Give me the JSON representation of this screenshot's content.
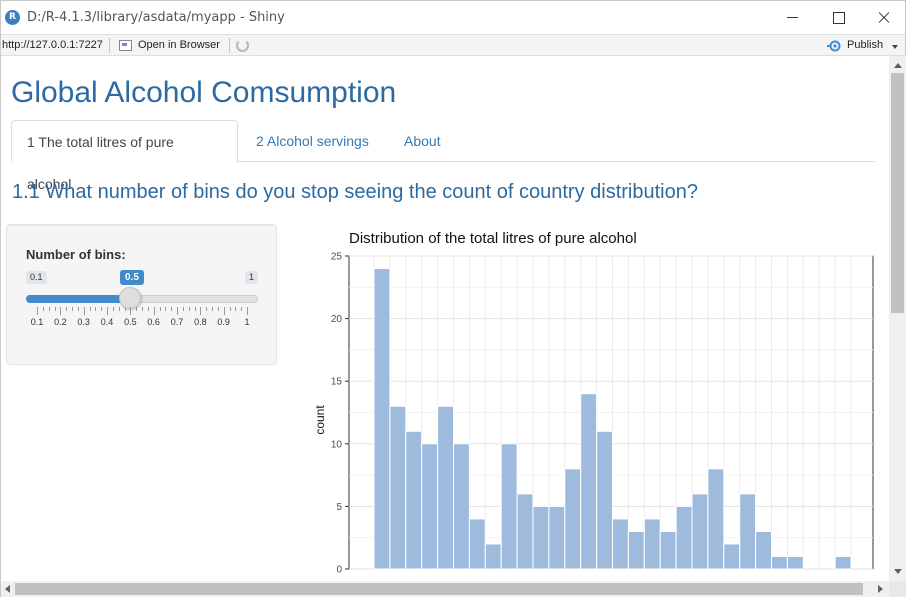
{
  "window": {
    "title": "D:/R-4.1.3/library/asdata/myapp - Shiny",
    "icon_letter": "R",
    "icon_color": "#3f7dc0"
  },
  "toolbar": {
    "url": "http://127.0.0.1:7227",
    "open_in_browser": "Open in Browser",
    "publish": "Publish"
  },
  "app": {
    "title": "Global Alcohol Comsumption",
    "accent": "#2c6aa3"
  },
  "tabs": [
    {
      "label": "1 The total litres of pure alcohol",
      "active": true
    },
    {
      "label": "2 Alcohol servings",
      "active": false
    },
    {
      "label": "About",
      "active": false
    }
  ],
  "question": "1.1 What number of bins do you stop seeing the count of country distribution?",
  "slider": {
    "label": "Number of bins:",
    "min": "0.1",
    "max": "1",
    "value": "0.5",
    "value_fraction": 0.444,
    "ticks": [
      "0.1",
      "0.2",
      "0.3",
      "0.4",
      "0.5",
      "0.6",
      "0.7",
      "0.8",
      "0.9",
      "1"
    ],
    "bar_color": "#428bca"
  },
  "chart_data": {
    "type": "bar",
    "title": "Distribution of the total litres of pure alcohol",
    "ylabel": "count",
    "xlabel": "",
    "ylim": [
      0,
      25
    ],
    "yticks": [
      "0",
      "5",
      "10",
      "15",
      "20",
      "25"
    ],
    "values": [
      24,
      13,
      11,
      10,
      13,
      10,
      4,
      2,
      10,
      6,
      5,
      5,
      8,
      14,
      11,
      4,
      3,
      4,
      3,
      5,
      6,
      8,
      2,
      6,
      3,
      1,
      1,
      0,
      0,
      1
    ],
    "bar_color": "#9ebbdd",
    "grid": true
  }
}
